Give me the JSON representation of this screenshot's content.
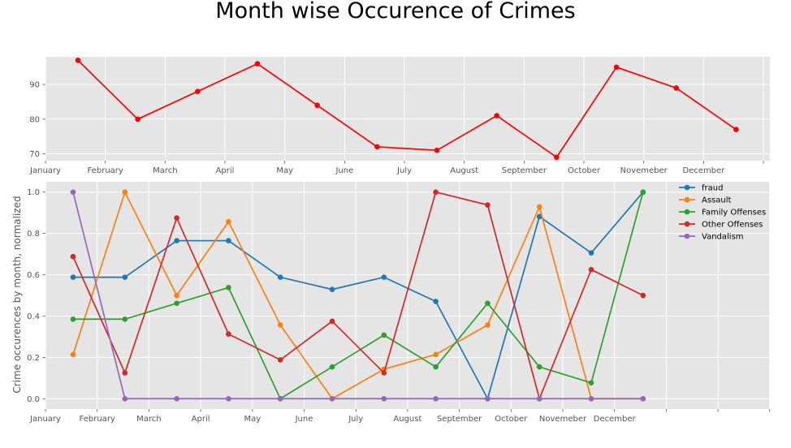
{
  "figure_title": "Month wise Occurence of Crimes",
  "chart_data": [
    {
      "type": "line",
      "title": "",
      "xlabel": "",
      "ylabel": "",
      "x_tick_labels": [
        "January",
        "February",
        "March",
        "April",
        "May",
        "June",
        "July",
        "August",
        "September",
        "October",
        "Novemeber",
        "December",
        ""
      ],
      "y_ticks": [
        70,
        80,
        90
      ],
      "ylim": [
        68,
        98
      ],
      "grid": true,
      "series": [
        {
          "color": "#ff0000",
          "values": [
            97,
            80,
            88,
            96,
            84,
            72,
            71,
            81,
            69,
            95,
            89,
            77
          ]
        }
      ]
    },
    {
      "type": "line",
      "title": "",
      "xlabel": "",
      "ylabel": "Crime occurences by month, normalized",
      "x_tick_labels": [
        "January",
        "February",
        "March",
        "April",
        "May",
        "June",
        "July",
        "August",
        "September",
        "October",
        "Novemeber",
        "December",
        "",
        "",
        ""
      ],
      "y_ticks": [
        "0.0",
        "0.2",
        "0.4",
        "0.6",
        "0.8",
        "1.0"
      ],
      "ylim": [
        -0.05,
        1.05
      ],
      "grid": true,
      "legend": "top-right",
      "series": [
        {
          "name": "fraud",
          "color": "#1f77b4",
          "values": [
            0.588,
            0.588,
            0.765,
            0.765,
            0.588,
            0.529,
            0.588,
            0.471,
            0.0,
            0.882,
            0.706,
            1.0
          ]
        },
        {
          "name": "Assault",
          "color": "#ff7f0e",
          "values": [
            0.214,
            1.0,
            0.5,
            0.857,
            0.357,
            0.0,
            0.143,
            0.214,
            0.357,
            0.929,
            0.0,
            0.0
          ]
        },
        {
          "name": "Family Offenses",
          "color": "#2ca02c",
          "values": [
            0.385,
            0.385,
            0.462,
            0.538,
            0.0,
            0.154,
            0.308,
            0.154,
            0.462,
            0.154,
            0.077,
            1.0
          ]
        },
        {
          "name": "Other Offenses",
          "color": "#d62728",
          "values": [
            0.688,
            0.125,
            0.875,
            0.313,
            0.188,
            0.375,
            0.125,
            1.0,
            0.938,
            0.0,
            0.625,
            0.5
          ]
        },
        {
          "name": "Vandalism",
          "color": "#9467bd",
          "values": [
            1.0,
            0.0,
            0.0,
            0.0,
            0.0,
            0.0,
            0.0,
            0.0,
            0.0,
            0.0,
            0.0,
            0.0
          ]
        }
      ]
    }
  ]
}
